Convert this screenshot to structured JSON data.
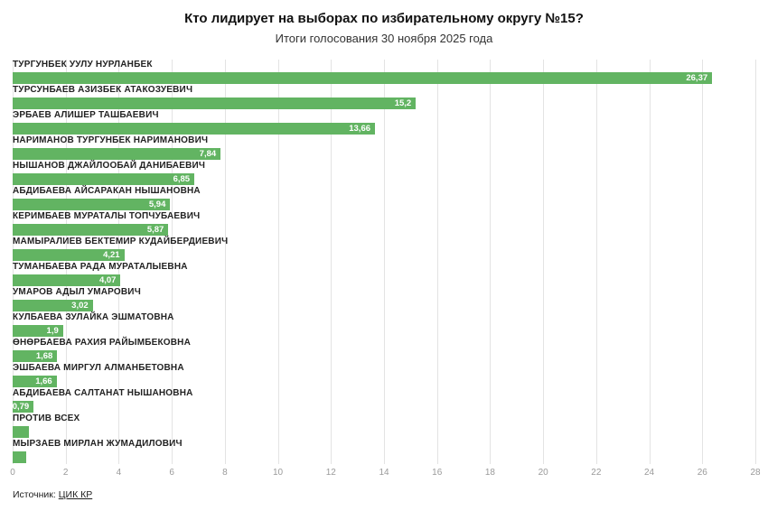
{
  "chart_data": {
    "type": "bar",
    "orientation": "horizontal",
    "title": "Кто лидирует на выборах по избирательному округу №15?",
    "subtitle": "Итоги голосования 30 ноября 2025 года",
    "categories": [
      "ТУРГУНБЕК УУЛУ НУРЛАНБЕК",
      "ТУРСУНБАЕВ АЗИЗБЕК АТАКОЗУЕВИЧ",
      "ЭРБАЕВ АЛИШЕР ТАШБАЕВИЧ",
      "НАРИМАНОВ ТУРГУНБЕК НАРИМАНОВИЧ",
      "НЫШАНОВ ДЖАЙЛООБАЙ ДАНИБАЕВИЧ",
      "АБДИБАЕВА АЙСАРАКАН НЫШАНОВНА",
      "КЕРИМБАЕВ МУРАТАЛЫ ТОПЧУБАЕВИЧ",
      "МАМЫРАЛИЕВ БЕКТЕМИР КУДАЙБЕРДИЕВИЧ",
      "ТУМАНБАЕВА РАДА МУРАТАЛЫЕВНА",
      "УМАРОВ АДЫЛ УМАРОВИЧ",
      "КУЛБАЕВА ЗУЛАЙКА ЭШМАТОВНА",
      "ӨНӨРБАЕВА РАХИЯ РАЙЫМБЕКОВНА",
      "ЭШБАЕВА МИРГУЛ АЛМАНБЕТОВНА",
      "АБДИБАЕВА САЛТАНАТ НЫШАНОВНА",
      "ПРОТИВ ВСЕХ",
      "МЫРЗАЕВ МИРЛАН ЖУМАДИЛОВИЧ"
    ],
    "values": [
      26.37,
      15.2,
      13.66,
      7.84,
      6.85,
      5.94,
      5.87,
      4.21,
      4.07,
      3.02,
      1.9,
      1.68,
      1.66,
      0.79,
      0.6,
      0.5
    ],
    "value_labels": [
      "26,37",
      "15,2",
      "13,66",
      "7,84",
      "6,85",
      "5,94",
      "5,87",
      "4,21",
      "4,07",
      "3,02",
      "1,9",
      "1,68",
      "1,66",
      "0,79",
      "",
      ""
    ],
    "xlim": [
      0,
      28
    ],
    "x_ticks": [
      0,
      2,
      4,
      6,
      8,
      10,
      12,
      14,
      16,
      18,
      20,
      22,
      24,
      26,
      28
    ],
    "bar_color": "#62b462",
    "grid": true,
    "legend": false
  },
  "source": {
    "prefix": "Источник:",
    "link_label": "ЦИК КР"
  }
}
